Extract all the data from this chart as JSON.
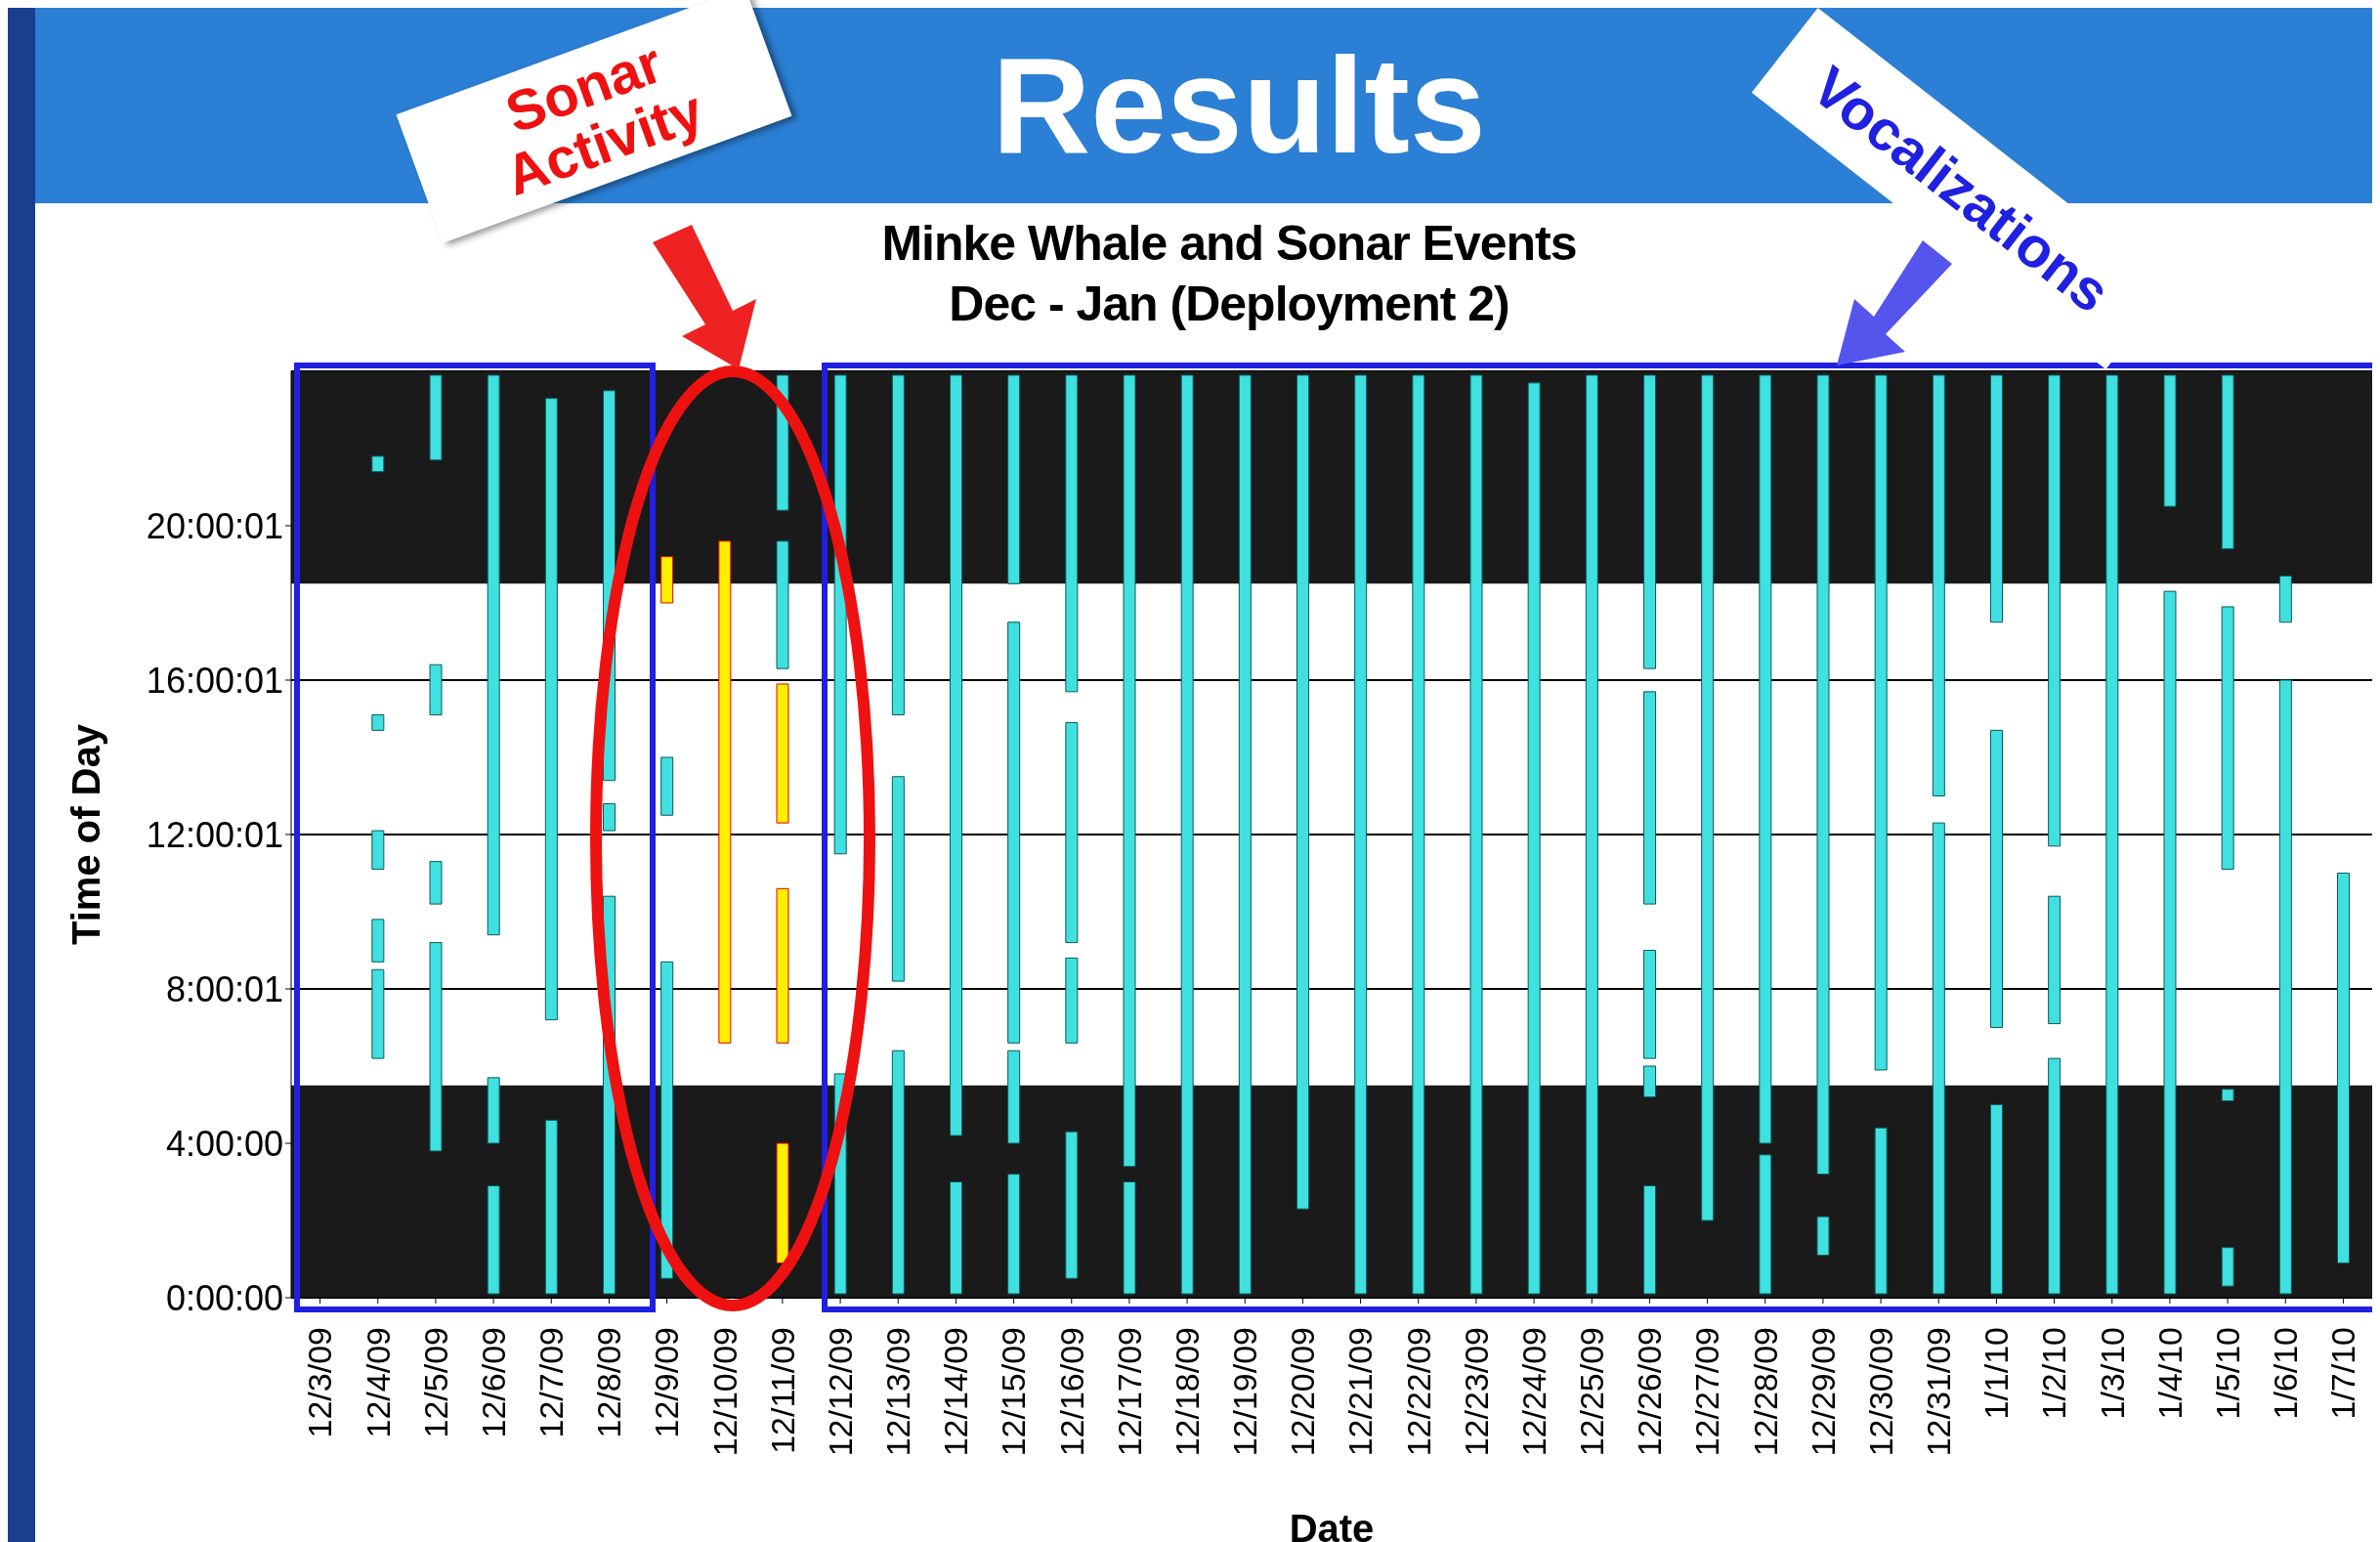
{
  "chart_data": {
    "type": "bar",
    "title": "Minke Whale and Sonar Events",
    "subtitle": "Dec - Jan (Deployment 2)",
    "xlabel": "Date",
    "ylabel": "Time of Day",
    "annotations": [
      "Results",
      "Sonar Activity",
      "Vocalizations"
    ],
    "categories": [
      "12/3/09",
      "12/4/09",
      "12/5/09",
      "12/6/09",
      "12/7/09",
      "12/8/09",
      "12/9/09",
      "12/10/09",
      "12/11/09",
      "12/12/09",
      "12/13/09",
      "12/14/09",
      "12/15/09",
      "12/16/09",
      "12/17/09",
      "12/18/09",
      "12/19/09",
      "12/20/09",
      "12/21/09",
      "12/22/09",
      "12/23/09",
      "12/24/09",
      "12/25/09",
      "12/26/09",
      "12/27/09",
      "12/28/09",
      "12/29/09",
      "12/30/09",
      "12/31/09",
      "1/1/10",
      "1/2/10",
      "1/3/10",
      "1/4/10",
      "1/5/10",
      "1/6/10",
      "1/7/10"
    ],
    "series": [
      {
        "color": "#40e0e0",
        "colors": [
          "#40e0e0",
          "#40e0e0",
          "#40e0e0",
          "#40e0e0",
          "#40e0e0",
          "#40e0e0",
          "#ffee00",
          "#ffee00",
          "#40e0e0",
          "#40e0e0",
          "#40e0e0",
          "#40e0e0",
          "#40e0e0",
          "#40e0e0",
          "#40e0e0",
          "#40e0e0",
          "#40e0e0",
          "#40e0e0",
          "#40e0e0",
          "#40e0e0",
          "#40e0e0",
          "#40e0e0",
          "#40e0e0",
          "#40e0e0",
          "#40e0e0",
          "#40e0e0",
          "#40e0e0",
          "#40e0e0",
          "#40e0e0",
          "#40e0e0",
          "#40e0e0",
          "#40e0e0",
          "#40e0e0",
          "#40e0e0",
          "#40e0e0",
          "#40e0e0"
        ],
        "base": [
          null,
          21.4,
          21.7,
          9.4,
          7.2,
          13.4,
          18.0,
          6.6,
          20.4,
          11.5,
          15.1,
          4.2,
          18.5,
          15.7,
          3.4,
          0.1,
          0.1,
          2.3,
          0.1,
          0.1,
          0.1,
          0.1,
          0.1,
          16.3,
          2.0,
          4.0,
          3.2,
          5.9,
          13.0,
          17.5,
          11.7,
          0.1,
          20.5,
          19.4,
          17.5,
          0.9
        ],
        "values": [
          null,
          0.4,
          2.2,
          14.5,
          16.1,
          10.1,
          1.2,
          13.0,
          3.5,
          12.4,
          8.8,
          19.7,
          5.4,
          8.2,
          20.5,
          23.8,
          23.8,
          21.6,
          23.8,
          23.8,
          23.8,
          23.6,
          23.8,
          7.6,
          21.9,
          19.9,
          20.7,
          18.0,
          10.9,
          6.4,
          12.2,
          23.8,
          3.4,
          4.5,
          1.2,
          10.1
        ]
      },
      {
        "color": "#40e0e0",
        "base": [
          null,
          14.7,
          15.1,
          4.0,
          0.1,
          12.1,
          12.5,
          null,
          16.3,
          0.1,
          8.2,
          0.1,
          6.6,
          9.2,
          0.1,
          null,
          null,
          null,
          null,
          null,
          null,
          null,
          null,
          10.2,
          null,
          0.1,
          1.1,
          0.1,
          0.1,
          7.0,
          7.1,
          null,
          0.1,
          11.1,
          0.1,
          null
        ],
        "values": [
          null,
          0.4,
          1.3,
          1.7,
          4.5,
          0.7,
          1.5,
          null,
          3.3,
          5.7,
          5.3,
          2.9,
          10.9,
          5.7,
          2.9,
          null,
          null,
          null,
          null,
          null,
          null,
          null,
          null,
          5.5,
          null,
          3.6,
          1.0,
          4.3,
          12.2,
          7.7,
          3.3,
          null,
          18.2,
          6.8,
          15.9,
          null
        ]
      },
      {
        "color": "#40e0e0",
        "colors": [
          "#40e0e0",
          "#40e0e0",
          "#40e0e0",
          "#40e0e0",
          "#40e0e0",
          "#40e0e0",
          "#40e0e0",
          "#40e0e0",
          "#ffee00",
          "#40e0e0",
          "#40e0e0",
          "#40e0e0",
          "#40e0e0",
          "#40e0e0",
          "#40e0e0",
          "#40e0e0",
          "#40e0e0",
          "#40e0e0",
          "#40e0e0",
          "#40e0e0",
          "#40e0e0",
          "#40e0e0",
          "#40e0e0",
          "#40e0e0",
          "#40e0e0",
          "#40e0e0",
          "#40e0e0",
          "#40e0e0",
          "#40e0e0",
          "#40e0e0",
          "#40e0e0",
          "#40e0e0",
          "#40e0e0",
          "#40e0e0",
          "#40e0e0",
          "#40e0e0"
        ],
        "base": [
          null,
          11.1,
          10.2,
          0.1,
          null,
          0.1,
          0.5,
          null,
          12.3,
          null,
          0.1,
          null,
          4.0,
          6.6,
          null,
          null,
          null,
          null,
          null,
          null,
          null,
          null,
          null,
          6.2,
          null,
          null,
          null,
          null,
          null,
          0.1,
          0.1,
          null,
          null,
          5.1,
          null,
          null
        ],
        "values": [
          null,
          1.0,
          1.1,
          2.8,
          null,
          10.3,
          8.2,
          null,
          3.6,
          null,
          6.3,
          null,
          2.4,
          2.2,
          null,
          null,
          null,
          null,
          null,
          null,
          null,
          null,
          null,
          2.8,
          null,
          null,
          null,
          null,
          null,
          4.9,
          6.1,
          null,
          null,
          0.3,
          null,
          null
        ]
      },
      {
        "color": "#40e0e0",
        "colors": [
          "#40e0e0",
          "#40e0e0",
          "#40e0e0",
          "#40e0e0",
          "#40e0e0",
          "#40e0e0",
          "#40e0e0",
          "#40e0e0",
          "#ffee00",
          "#40e0e0",
          "#40e0e0",
          "#40e0e0",
          "#40e0e0",
          "#40e0e0",
          "#40e0e0",
          "#40e0e0",
          "#40e0e0",
          "#40e0e0",
          "#40e0e0",
          "#40e0e0",
          "#40e0e0",
          "#40e0e0",
          "#40e0e0",
          "#40e0e0",
          "#40e0e0",
          "#40e0e0",
          "#40e0e0",
          "#40e0e0",
          "#40e0e0",
          "#40e0e0",
          "#40e0e0",
          "#40e0e0",
          "#40e0e0",
          "#40e0e0",
          "#40e0e0",
          "#40e0e0"
        ],
        "base": [
          null,
          8.7,
          3.8,
          null,
          null,
          null,
          null,
          null,
          6.6,
          null,
          null,
          null,
          0.1,
          0.5,
          null,
          null,
          null,
          null,
          null,
          null,
          null,
          null,
          null,
          5.2,
          null,
          null,
          null,
          null,
          null,
          null,
          null,
          null,
          null,
          0.3,
          null,
          null
        ],
        "values": [
          null,
          1.1,
          5.4,
          null,
          null,
          null,
          null,
          null,
          4.0,
          null,
          null,
          null,
          3.1,
          3.8,
          null,
          null,
          null,
          null,
          null,
          null,
          null,
          null,
          null,
          0.8,
          null,
          null,
          null,
          null,
          null,
          null,
          null,
          null,
          null,
          1.0,
          null,
          null
        ]
      },
      {
        "color": "#40e0e0",
        "colors": [
          "#40e0e0",
          "#40e0e0",
          "#40e0e0",
          "#40e0e0",
          "#40e0e0",
          "#40e0e0",
          "#40e0e0",
          "#40e0e0",
          "#ffee00",
          "#40e0e0",
          "#40e0e0",
          "#40e0e0",
          "#40e0e0",
          "#40e0e0",
          "#40e0e0",
          "#40e0e0",
          "#40e0e0",
          "#40e0e0",
          "#40e0e0",
          "#40e0e0",
          "#40e0e0",
          "#40e0e0",
          "#40e0e0",
          "#40e0e0",
          "#40e0e0",
          "#40e0e0",
          "#40e0e0",
          "#40e0e0",
          "#40e0e0",
          "#40e0e0",
          "#40e0e0",
          "#40e0e0",
          "#40e0e0",
          "#40e0e0",
          "#40e0e0",
          "#40e0e0"
        ],
        "base": [
          null,
          6.2,
          null,
          null,
          null,
          null,
          null,
          null,
          0.9,
          null,
          null,
          null,
          null,
          null,
          null,
          null,
          null,
          null,
          null,
          null,
          null,
          null,
          null,
          0.1,
          null,
          null,
          null,
          null,
          null,
          null,
          null,
          null,
          null,
          null,
          null,
          null
        ],
        "values": [
          null,
          2.3,
          null,
          null,
          null,
          null,
          null,
          null,
          3.1,
          null,
          null,
          null,
          null,
          null,
          null,
          null,
          null,
          null,
          null,
          null,
          null,
          null,
          null,
          2.8,
          null,
          null,
          null,
          null,
          null,
          null,
          null,
          null,
          null,
          null,
          null,
          null
        ]
      }
    ],
    "ylim": [
      0,
      24
    ],
    "yticks": [
      {
        "value": 0,
        "label": "0:00:00"
      },
      {
        "value": 4,
        "label": "4:00:00"
      },
      {
        "value": 8.000278,
        "label": "8:00:01"
      },
      {
        "value": 12.000278,
        "label": "12:00:01"
      },
      {
        "value": 16.000278,
        "label": "16:00:01"
      },
      {
        "value": 20.000278,
        "label": "20:00:01"
      }
    ],
    "bands": [
      {
        "axis": "y",
        "from": 0,
        "to": 5.5,
        "color": "#1a1a1a"
      },
      {
        "axis": "y",
        "from": 18.5,
        "to": 24,
        "color": "#1a1a1a"
      }
    ],
    "grid": "y"
  }
}
